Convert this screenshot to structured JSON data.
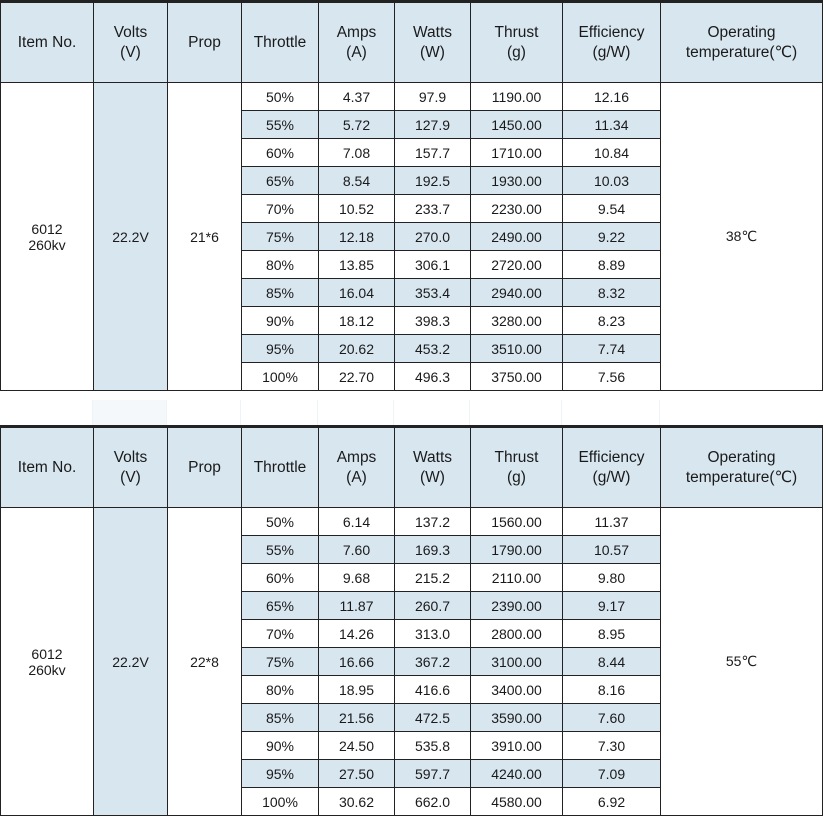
{
  "headers": [
    {
      "line1": "Item No.",
      "line2": ""
    },
    {
      "line1": "Volts",
      "line2": "(V)"
    },
    {
      "line1": "Prop",
      "line2": ""
    },
    {
      "line1": "Throttle",
      "line2": ""
    },
    {
      "line1": "Amps",
      "line2": "(A)"
    },
    {
      "line1": "Watts",
      "line2": "(W)"
    },
    {
      "line1": "Thrust",
      "line2": "(g)"
    },
    {
      "line1": "Efficiency",
      "line2": "(g/W)"
    },
    {
      "line1": "Operating",
      "line2": "temperature(℃)"
    }
  ],
  "tables": [
    {
      "item_no": [
        "6012",
        "260kv"
      ],
      "volts": "22.2V",
      "prop": "21*6",
      "temperature": "38℃",
      "rows": [
        [
          "50%",
          "4.37",
          "97.9",
          "1190.00",
          "12.16"
        ],
        [
          "55%",
          "5.72",
          "127.9",
          "1450.00",
          "11.34"
        ],
        [
          "60%",
          "7.08",
          "157.7",
          "1710.00",
          "10.84"
        ],
        [
          "65%",
          "8.54",
          "192.5",
          "1930.00",
          "10.03"
        ],
        [
          "70%",
          "10.52",
          "233.7",
          "2230.00",
          "9.54"
        ],
        [
          "75%",
          "12.18",
          "270.0",
          "2490.00",
          "9.22"
        ],
        [
          "80%",
          "13.85",
          "306.1",
          "2720.00",
          "8.89"
        ],
        [
          "85%",
          "16.04",
          "353.4",
          "2940.00",
          "8.32"
        ],
        [
          "90%",
          "18.12",
          "398.3",
          "3280.00",
          "8.23"
        ],
        [
          "95%",
          "20.62",
          "453.2",
          "3510.00",
          "7.74"
        ],
        [
          "100%",
          "22.70",
          "496.3",
          "3750.00",
          "7.56"
        ]
      ]
    },
    {
      "item_no": [
        "6012",
        "260kv"
      ],
      "volts": "22.2V",
      "prop": "22*8",
      "temperature": "55℃",
      "rows": [
        [
          "50%",
          "6.14",
          "137.2",
          "1560.00",
          "11.37"
        ],
        [
          "55%",
          "7.60",
          "169.3",
          "1790.00",
          "10.57"
        ],
        [
          "60%",
          "9.68",
          "215.2",
          "2110.00",
          "9.80"
        ],
        [
          "65%",
          "11.87",
          "260.7",
          "2390.00",
          "9.17"
        ],
        [
          "70%",
          "14.26",
          "313.0",
          "2800.00",
          "8.95"
        ],
        [
          "75%",
          "16.66",
          "367.2",
          "3100.00",
          "8.44"
        ],
        [
          "80%",
          "18.95",
          "416.6",
          "3400.00",
          "8.16"
        ],
        [
          "85%",
          "21.56",
          "472.5",
          "3590.00",
          "7.60"
        ],
        [
          "90%",
          "24.50",
          "535.8",
          "3910.00",
          "7.30"
        ],
        [
          "95%",
          "27.50",
          "597.7",
          "4240.00",
          "7.09"
        ],
        [
          "100%",
          "30.62",
          "662.0",
          "4580.00",
          "6.92"
        ]
      ]
    }
  ]
}
